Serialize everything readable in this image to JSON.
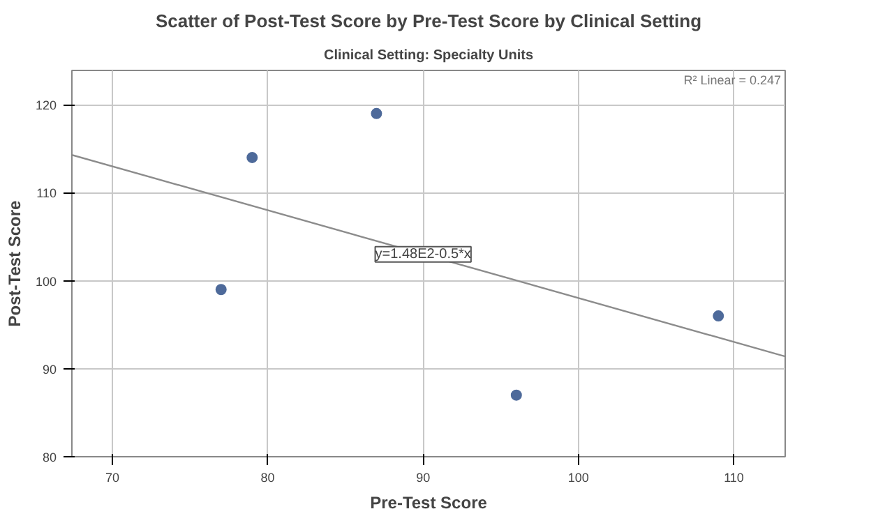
{
  "chart_data": {
    "type": "scatter",
    "title": "Scatter of Post-Test Score by Pre-Test Score by Clinical Setting",
    "subtitle": "Clinical Setting: Specialty Units",
    "xlabel": "Pre-Test Score",
    "ylabel": "Post-Test Score",
    "series": [
      {
        "color": "#4e6a9a",
        "x": [
          77,
          79,
          87,
          96,
          109
        ],
        "values": [
          99,
          114,
          119,
          87,
          96
        ]
      },
      {
        "type": "line",
        "marker": "none",
        "color": "#8c8c8c",
        "x": [
          67.4,
          113.3
        ],
        "values": [
          114.3,
          91.4
        ]
      }
    ],
    "annotations": [
      "R² Linear = 0.247",
      {
        "text": "y=1.48E2-0.5*x",
        "x": 90,
        "y": 103
      }
    ],
    "xlim": [
      67.4,
      113.3
    ],
    "ylim": [
      80,
      123.9
    ],
    "xticks": [
      70,
      80,
      90,
      100,
      110
    ],
    "yticks": [
      80,
      90,
      100,
      110,
      120
    ],
    "grid": true,
    "marker": "circle"
  }
}
